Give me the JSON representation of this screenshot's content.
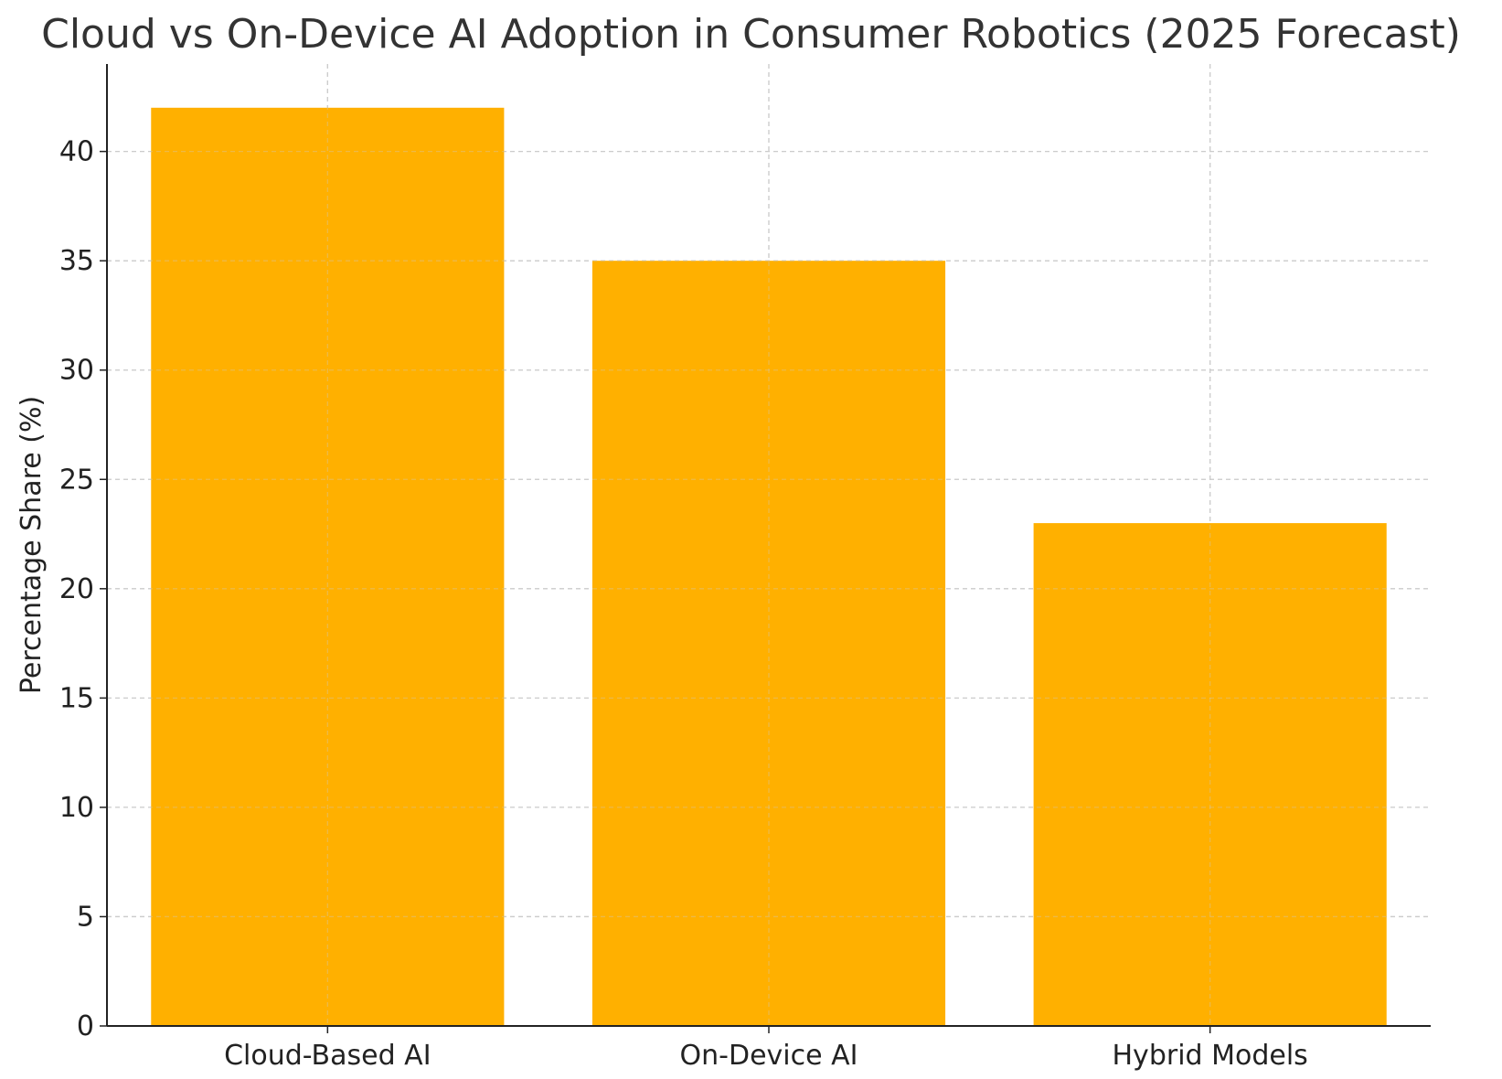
{
  "chart_data": {
    "type": "bar",
    "title": "Cloud vs On-Device AI Adoption in Consumer Robotics (2025 Forecast)",
    "xlabel": "",
    "ylabel": "Percentage Share (%)",
    "categories": [
      "Cloud-Based AI",
      "On-Device AI",
      "Hybrid Models"
    ],
    "values": [
      42,
      35,
      23
    ],
    "ylim": [
      0,
      44
    ],
    "yticks": [
      0,
      5,
      10,
      15,
      20,
      25,
      30,
      35,
      40
    ],
    "grid": true,
    "bar_color": "#FFB000",
    "grid_color": "#cccccc",
    "axis_color": "#222222"
  }
}
